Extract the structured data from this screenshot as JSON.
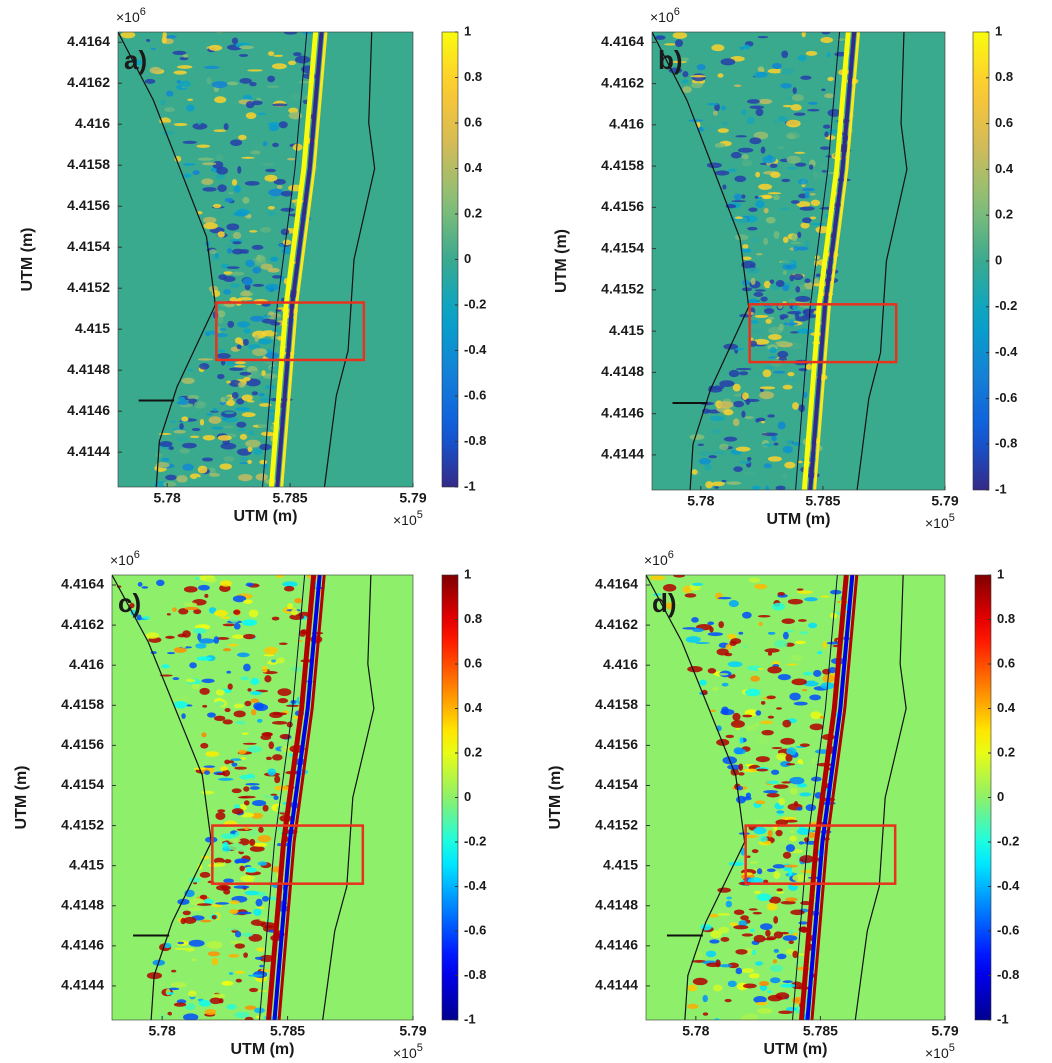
{
  "chart_data": [
    {
      "type": "heatmap",
      "panel_label": "a)",
      "xlabel": "UTM (m)",
      "ylabel": "UTM (m)",
      "x_scale": {
        "base": "×10",
        "exponent": "5"
      },
      "y_scale": {
        "base": "×10",
        "exponent": "6"
      },
      "xlim": [
        5.778,
        5.79
      ],
      "xticks": [
        5.78,
        5.785,
        5.79
      ],
      "ylim": [
        4.41423,
        4.41645
      ],
      "yticks": [
        4.4144,
        4.4146,
        4.4148,
        4.415,
        4.4152,
        4.4154,
        4.4156,
        4.4158,
        4.416,
        4.4162,
        4.4164
      ],
      "colormap": "parula",
      "clim": [
        -1,
        1
      ],
      "cticks": [
        -1,
        -0.8,
        -0.6,
        -0.4,
        -0.2,
        0,
        0.2,
        0.4,
        0.6,
        0.8,
        1
      ],
      "highlight_box": {
        "x": [
          5.782,
          5.788
        ],
        "y": [
          4.41485,
          4.41513
        ],
        "color": "#e8321e"
      }
    },
    {
      "type": "heatmap",
      "panel_label": "b)",
      "xlabel": "UTM (m)",
      "ylabel": "UTM (m)",
      "x_scale": {
        "base": "×10",
        "exponent": "5"
      },
      "y_scale": {
        "base": "×10",
        "exponent": "6"
      },
      "xlim": [
        5.778,
        5.79
      ],
      "xticks": [
        5.78,
        5.785,
        5.79
      ],
      "ylim": [
        4.41423,
        4.41645
      ],
      "yticks": [
        4.4144,
        4.4146,
        4.4148,
        4.415,
        4.4152,
        4.4154,
        4.4156,
        4.4158,
        4.416,
        4.4162,
        4.4164
      ],
      "colormap": "parula",
      "clim": [
        -1,
        1
      ],
      "cticks": [
        -1,
        -0.8,
        -0.6,
        -0.4,
        -0.2,
        0,
        0.2,
        0.4,
        0.6,
        0.8,
        1
      ],
      "highlight_box": {
        "x": [
          5.782,
          5.788
        ],
        "y": [
          4.41485,
          4.41513
        ],
        "color": "#e8321e"
      }
    },
    {
      "type": "heatmap",
      "panel_label": "c)",
      "xlabel": "UTM (m)",
      "ylabel": "UTM (m)",
      "x_scale": {
        "base": "×10",
        "exponent": "5"
      },
      "y_scale": {
        "base": "×10",
        "exponent": "6"
      },
      "xlim": [
        5.778,
        5.79
      ],
      "xticks": [
        5.78,
        5.785,
        5.79
      ],
      "ylim": [
        4.41423,
        4.41645
      ],
      "yticks": [
        4.4144,
        4.4146,
        4.4148,
        4.415,
        4.4152,
        4.4154,
        4.4156,
        4.4158,
        4.416,
        4.4162,
        4.4164
      ],
      "colormap": "jet",
      "clim": [
        -1,
        1
      ],
      "cticks": [
        -1,
        -0.8,
        -0.6,
        -0.4,
        -0.2,
        0,
        0.2,
        0.4,
        0.6,
        0.8,
        1
      ],
      "highlight_box": {
        "x": [
          5.782,
          5.788
        ],
        "y": [
          4.41491,
          4.4152
        ],
        "color": "#e8321e"
      }
    },
    {
      "type": "heatmap",
      "panel_label": "d)",
      "xlabel": "UTM (m)",
      "ylabel": "UTM (m)",
      "x_scale": {
        "base": "×10",
        "exponent": "5"
      },
      "y_scale": {
        "base": "×10",
        "exponent": "6"
      },
      "xlim": [
        5.778,
        5.79
      ],
      "xticks": [
        5.78,
        5.785,
        5.79
      ],
      "ylim": [
        4.41423,
        4.41645
      ],
      "yticks": [
        4.4144,
        4.4146,
        4.4148,
        4.415,
        4.4152,
        4.4154,
        4.4156,
        4.4158,
        4.416,
        4.4162,
        4.4164
      ],
      "colormap": "jet",
      "clim": [
        -1,
        1
      ],
      "cticks": [
        -1,
        -0.8,
        -0.6,
        -0.4,
        -0.2,
        0,
        0.2,
        0.4,
        0.6,
        0.8,
        1
      ],
      "highlight_box": {
        "x": [
          5.782,
          5.788
        ],
        "y": [
          4.41491,
          4.4152
        ],
        "color": "#e8321e"
      }
    }
  ]
}
